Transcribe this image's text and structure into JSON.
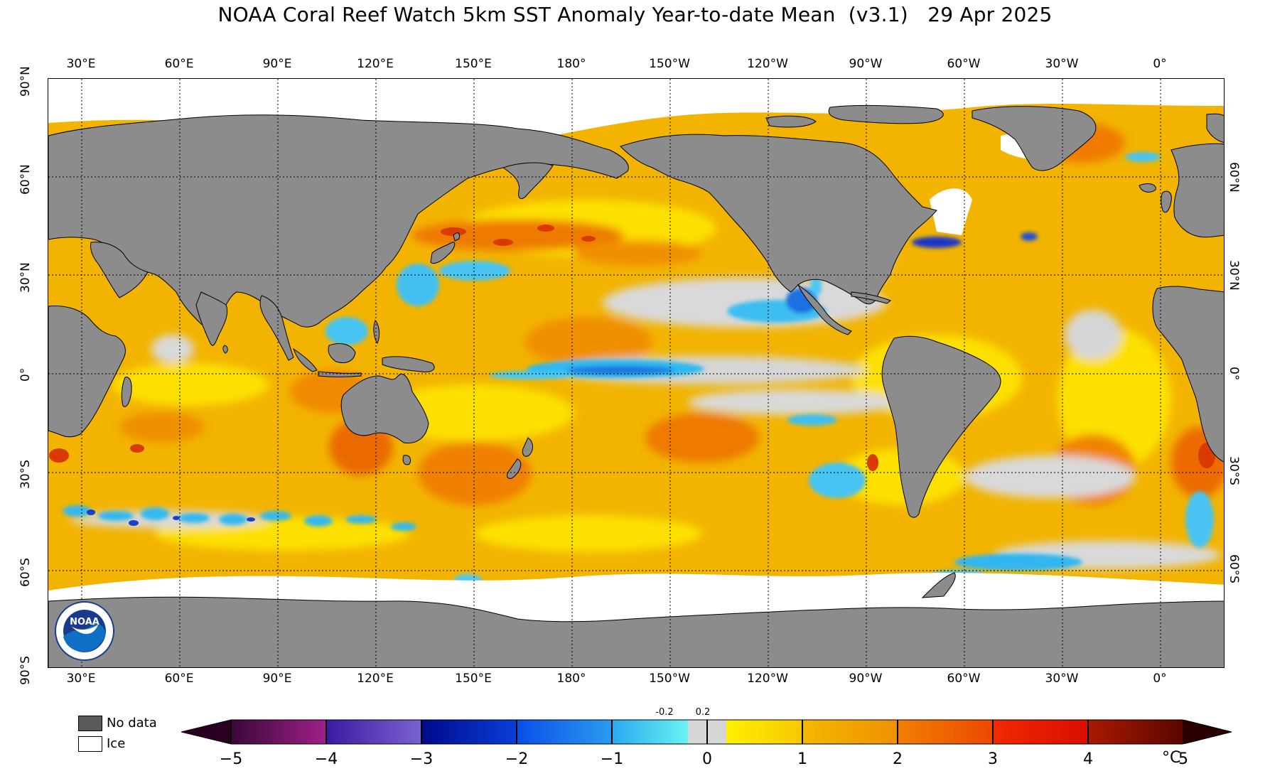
{
  "title": "NOAA Coral Reef Watch 5km SST Anomaly Year-to-date Mean  (v3.1)   29 Apr 2025",
  "lon_labels": [
    "30°E",
    "60°E",
    "90°E",
    "120°E",
    "150°E",
    "180°",
    "150°W",
    "120°W",
    "90°W",
    "60°W",
    "30°W",
    "0°"
  ],
  "lat_labels_left": [
    "90°N",
    "60°N",
    "30°N",
    "0°",
    "30°S",
    "60°S",
    "90°S"
  ],
  "lat_labels_right": [
    "60°N",
    "30°N",
    "0°",
    "30°S",
    "60°S"
  ],
  "legend": {
    "no_data": "No data",
    "ice": "Ice"
  },
  "colorbar": {
    "ticks": [
      "−5",
      "−4",
      "−3",
      "−2",
      "−1",
      "0",
      "1",
      "2",
      "3",
      "4",
      "5"
    ],
    "small_ticks": [
      "-0.2",
      "0.2"
    ],
    "unit": "°C"
  },
  "colors": {
    "land": "#8c8c8c",
    "ice": "#ffffff",
    "neutral": "#d9d9d9",
    "warm_light": "#fdf200",
    "warm": "#f6b400",
    "warm_high": "#f08000",
    "hot": "#e84a00",
    "cool": "#3fc0f0",
    "cold": "#1d70e0",
    "very_cold": "#1a2bbd"
  },
  "logo": {
    "text": "NOAA"
  }
}
